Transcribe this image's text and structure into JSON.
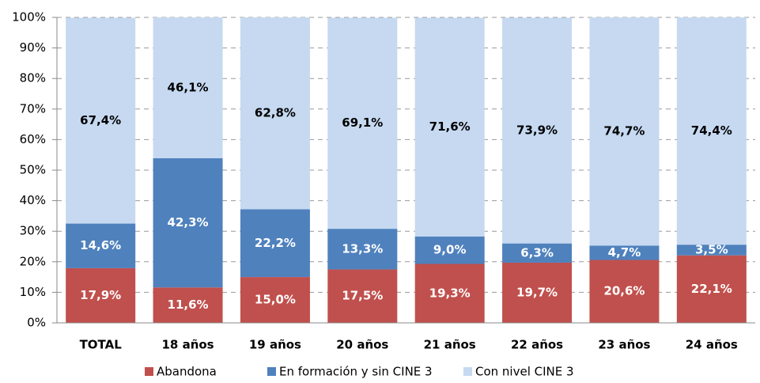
{
  "chart_data": {
    "type": "stacked_bar",
    "categories": [
      "TOTAL",
      "18 años",
      "19 años",
      "20 años",
      "21 años",
      "22 años",
      "23 años",
      "24 años"
    ],
    "series": [
      {
        "name": "Abandona",
        "color": "#c0504d",
        "values": [
          17.9,
          11.6,
          15.0,
          17.5,
          19.3,
          19.7,
          20.6,
          22.1
        ],
        "value_labels": [
          "17,9%",
          "11,6%",
          "15,0%",
          "17,5%",
          "19,3%",
          "19,7%",
          "20,6%",
          "22,1%"
        ]
      },
      {
        "name": "En formación y sin CINE 3",
        "color": "#4f81bd",
        "values": [
          14.6,
          42.3,
          22.2,
          13.3,
          9.0,
          6.3,
          4.7,
          3.5
        ],
        "value_labels": [
          "14,6%",
          "42,3%",
          "22,2%",
          "13,3%",
          "9,0%",
          "6,3%",
          "4,7%",
          "3,5%"
        ]
      },
      {
        "name": "Con nivel CINE 3",
        "color": "#c6d9f1",
        "values": [
          67.4,
          46.1,
          62.8,
          69.1,
          71.6,
          73.9,
          74.7,
          74.4
        ],
        "value_labels": [
          "67,4%",
          "46,1%",
          "62,8%",
          "69,1%",
          "71,6%",
          "73,9%",
          "74,7%",
          "74,4%"
        ]
      }
    ],
    "ylim": [
      0,
      100
    ],
    "yticks": [
      {
        "value": 0,
        "label": "0%"
      },
      {
        "value": 10,
        "label": "10%"
      },
      {
        "value": 20,
        "label": "20%"
      },
      {
        "value": 30,
        "label": "30%"
      },
      {
        "value": 40,
        "label": "40%"
      },
      {
        "value": 50,
        "label": "50%"
      },
      {
        "value": 60,
        "label": "60%"
      },
      {
        "value": 70,
        "label": "70%"
      },
      {
        "value": 80,
        "label": "80%"
      },
      {
        "value": 90,
        "label": "90%"
      },
      {
        "value": 100,
        "label": "100%"
      }
    ],
    "grid": true,
    "legend": "bottom"
  }
}
